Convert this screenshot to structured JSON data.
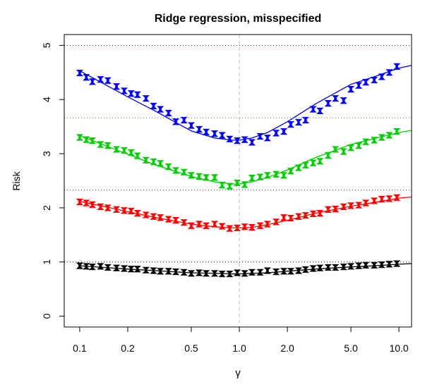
{
  "chart_data": {
    "type": "line",
    "title": "Ridge regression, misspecified",
    "xlabel": "γ",
    "ylabel": "Risk",
    "xscale": "log",
    "xlim": [
      0.08,
      12
    ],
    "ylim": [
      -0.2,
      5.2
    ],
    "x_ticks": [
      0.1,
      0.2,
      0.5,
      1.0,
      2.0,
      5.0,
      10.0
    ],
    "x_tick_labels": [
      "0.1",
      "0.2",
      "0.5",
      "1.0",
      "2.0",
      "5.0",
      "10.0"
    ],
    "y_ticks": [
      0,
      1,
      2,
      3,
      4,
      5
    ],
    "y_tick_labels": [
      "0",
      "1",
      "2",
      "3",
      "4",
      "5"
    ],
    "vertical_reference": {
      "x": 1.0,
      "color": "#cccccc",
      "style": "dashed"
    },
    "series": [
      {
        "color": "#0000ff",
        "asymptote": 5.0,
        "curve": {
          "x": [
            0.1,
            0.2,
            0.3,
            0.5,
            0.7,
            0.9,
            1.0,
            1.2,
            1.5,
            2.0,
            3.0,
            5.0,
            7.0,
            10.0,
            12.0
          ],
          "y": [
            4.53,
            4.05,
            3.78,
            3.42,
            3.29,
            3.25,
            3.25,
            3.29,
            3.39,
            3.59,
            3.92,
            4.28,
            4.42,
            4.58,
            4.63
          ]
        },
        "points": {
          "x": [
            0.1,
            0.11,
            0.12,
            0.135,
            0.15,
            0.17,
            0.19,
            0.21,
            0.23,
            0.26,
            0.29,
            0.32,
            0.36,
            0.4,
            0.45,
            0.5,
            0.56,
            0.62,
            0.7,
            0.78,
            0.87,
            0.97,
            1.08,
            1.2,
            1.35,
            1.5,
            1.7,
            1.9,
            2.1,
            2.35,
            2.6,
            2.9,
            3.2,
            3.6,
            4.0,
            4.5,
            5.0,
            5.6,
            6.2,
            7.0,
            7.8,
            8.7,
            9.7
          ],
          "y": [
            4.49,
            4.41,
            4.33,
            4.37,
            4.35,
            4.24,
            4.16,
            4.11,
            4.09,
            4.02,
            3.88,
            3.82,
            3.75,
            3.59,
            3.62,
            3.52,
            3.45,
            3.4,
            3.37,
            3.34,
            3.27,
            3.24,
            3.26,
            3.21,
            3.32,
            3.29,
            3.38,
            3.41,
            3.54,
            3.58,
            3.62,
            3.82,
            3.79,
            3.93,
            4.02,
            3.98,
            4.19,
            4.26,
            4.32,
            4.36,
            4.42,
            4.5,
            4.61
          ]
        }
      },
      {
        "color": "#00cd00",
        "asymptote": 3.66,
        "curve": {
          "x": [
            0.1,
            0.2,
            0.3,
            0.5,
            0.7,
            0.9,
            1.0,
            1.2,
            1.5,
            2.0,
            3.0,
            5.0,
            7.0,
            10.0,
            12.0
          ],
          "y": [
            3.33,
            2.99,
            2.79,
            2.58,
            2.48,
            2.44,
            2.44,
            2.48,
            2.56,
            2.7,
            2.93,
            3.17,
            3.28,
            3.39,
            3.43
          ]
        },
        "points": {
          "x": [
            0.1,
            0.11,
            0.12,
            0.135,
            0.15,
            0.17,
            0.19,
            0.21,
            0.23,
            0.26,
            0.29,
            0.32,
            0.36,
            0.4,
            0.45,
            0.5,
            0.56,
            0.62,
            0.7,
            0.78,
            0.87,
            0.97,
            1.08,
            1.2,
            1.35,
            1.5,
            1.7,
            1.9,
            2.1,
            2.35,
            2.6,
            2.9,
            3.2,
            3.6,
            4.0,
            4.5,
            5.0,
            5.6,
            6.2,
            7.0,
            7.8,
            8.7,
            9.7
          ],
          "y": [
            3.3,
            3.26,
            3.24,
            3.17,
            3.15,
            3.08,
            3.06,
            3.02,
            2.96,
            2.88,
            2.85,
            2.82,
            2.76,
            2.69,
            2.66,
            2.6,
            2.58,
            2.56,
            2.56,
            2.42,
            2.4,
            2.46,
            2.43,
            2.55,
            2.57,
            2.6,
            2.62,
            2.6,
            2.68,
            2.74,
            2.79,
            2.83,
            2.86,
            2.97,
            3.08,
            3.04,
            3.11,
            3.15,
            3.22,
            3.25,
            3.3,
            3.34,
            3.41
          ]
        }
      },
      {
        "color": "#ff0000",
        "asymptote": 2.33,
        "curve": {
          "x": [
            0.1,
            0.2,
            0.3,
            0.5,
            0.7,
            0.9,
            1.0,
            1.2,
            1.5,
            2.0,
            3.0,
            5.0,
            7.0,
            10.0,
            12.0
          ],
          "y": [
            2.12,
            1.93,
            1.82,
            1.7,
            1.65,
            1.63,
            1.63,
            1.64,
            1.69,
            1.77,
            1.9,
            2.03,
            2.1,
            2.18,
            2.2
          ]
        },
        "points": {
          "x": [
            0.1,
            0.11,
            0.12,
            0.135,
            0.15,
            0.17,
            0.19,
            0.21,
            0.23,
            0.26,
            0.29,
            0.32,
            0.36,
            0.4,
            0.45,
            0.5,
            0.56,
            0.62,
            0.7,
            0.78,
            0.87,
            0.97,
            1.08,
            1.2,
            1.35,
            1.5,
            1.7,
            1.9,
            2.1,
            2.35,
            2.6,
            2.9,
            3.2,
            3.6,
            4.0,
            4.5,
            5.0,
            5.6,
            6.2,
            7.0,
            7.8,
            8.7,
            9.7
          ],
          "y": [
            2.11,
            2.09,
            2.06,
            2.02,
            2.0,
            1.97,
            1.95,
            1.94,
            1.9,
            1.87,
            1.84,
            1.82,
            1.79,
            1.77,
            1.73,
            1.67,
            1.7,
            1.67,
            1.7,
            1.66,
            1.62,
            1.63,
            1.65,
            1.64,
            1.67,
            1.7,
            1.74,
            1.82,
            1.81,
            1.84,
            1.86,
            1.89,
            1.9,
            1.97,
            1.98,
            2.02,
            2.04,
            2.05,
            2.09,
            2.13,
            2.16,
            2.17,
            2.19
          ]
        }
      },
      {
        "color": "#000000",
        "asymptote": 1.0,
        "curve": {
          "x": [
            0.1,
            0.2,
            0.3,
            0.5,
            0.7,
            0.9,
            1.0,
            1.2,
            1.5,
            2.0,
            3.0,
            5.0,
            7.0,
            10.0,
            12.0
          ],
          "y": [
            0.93,
            0.87,
            0.84,
            0.8,
            0.79,
            0.78,
            0.78,
            0.79,
            0.8,
            0.83,
            0.87,
            0.91,
            0.93,
            0.96,
            0.97
          ]
        },
        "points": {
          "x": [
            0.1,
            0.11,
            0.12,
            0.135,
            0.15,
            0.17,
            0.19,
            0.21,
            0.23,
            0.26,
            0.29,
            0.32,
            0.36,
            0.4,
            0.45,
            0.5,
            0.56,
            0.62,
            0.7,
            0.78,
            0.87,
            0.97,
            1.08,
            1.2,
            1.35,
            1.5,
            1.7,
            1.9,
            2.1,
            2.35,
            2.6,
            2.9,
            3.2,
            3.6,
            4.0,
            4.5,
            5.0,
            5.6,
            6.2,
            7.0,
            7.8,
            8.7,
            9.7
          ],
          "y": [
            0.93,
            0.92,
            0.91,
            0.92,
            0.9,
            0.89,
            0.88,
            0.87,
            0.87,
            0.85,
            0.84,
            0.83,
            0.83,
            0.82,
            0.81,
            0.79,
            0.8,
            0.79,
            0.79,
            0.78,
            0.78,
            0.8,
            0.79,
            0.81,
            0.81,
            0.84,
            0.82,
            0.83,
            0.83,
            0.84,
            0.86,
            0.88,
            0.89,
            0.9,
            0.9,
            0.91,
            0.92,
            0.93,
            0.94,
            0.94,
            0.95,
            0.96,
            0.97
          ]
        }
      }
    ]
  }
}
